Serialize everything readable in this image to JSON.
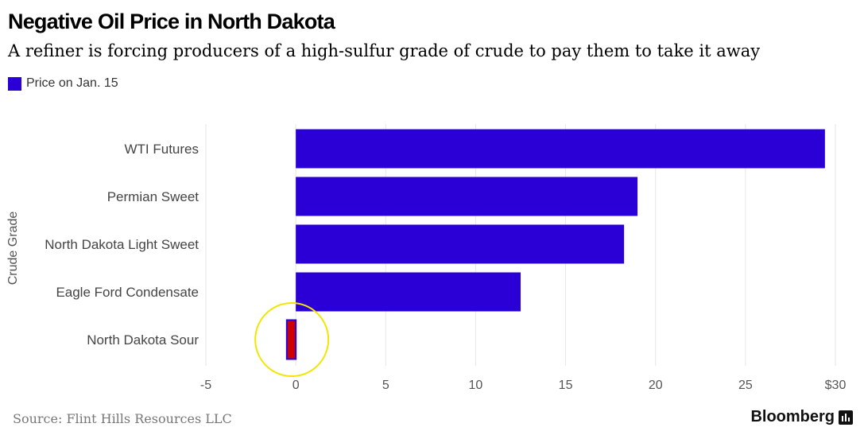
{
  "title": "Negative Oil Price in North Dakota",
  "subtitle": "A refiner is forcing producers of a high-sulfur grade of crude to pay them to take it away",
  "legend": {
    "label": "Price on Jan. 15"
  },
  "source": "Source: Flint Hills Resources LLC",
  "brand": "Bloomberg",
  "colors": {
    "bar": "#2a00d6",
    "highlight_bar": "#cc0000",
    "circle": "#f2e600",
    "grid": "#e6e6e6",
    "axis_text": "#555555"
  },
  "chart_data": {
    "type": "bar",
    "orientation": "horizontal",
    "ylabel": "Crude Grade",
    "categories": [
      "WTI Futures",
      "Permian Sweet",
      "North Dakota Light Sweet",
      "Eagle Ford Condensate",
      "North Dakota Sour"
    ],
    "series": [
      {
        "name": "Price on Jan. 15",
        "values": [
          29.42,
          19.0,
          18.25,
          12.5,
          -0.5
        ]
      }
    ],
    "xlim": [
      -5,
      30
    ],
    "xticks": [
      -5,
      0,
      5,
      10,
      15,
      20,
      25,
      30
    ],
    "xtick_labels": [
      "-5",
      "0",
      "5",
      "10",
      "15",
      "20",
      "25",
      "$30"
    ],
    "grid": true,
    "legend_position": "top-left",
    "highlight": {
      "category": "North Dakota Sour",
      "marker": "circle"
    }
  }
}
